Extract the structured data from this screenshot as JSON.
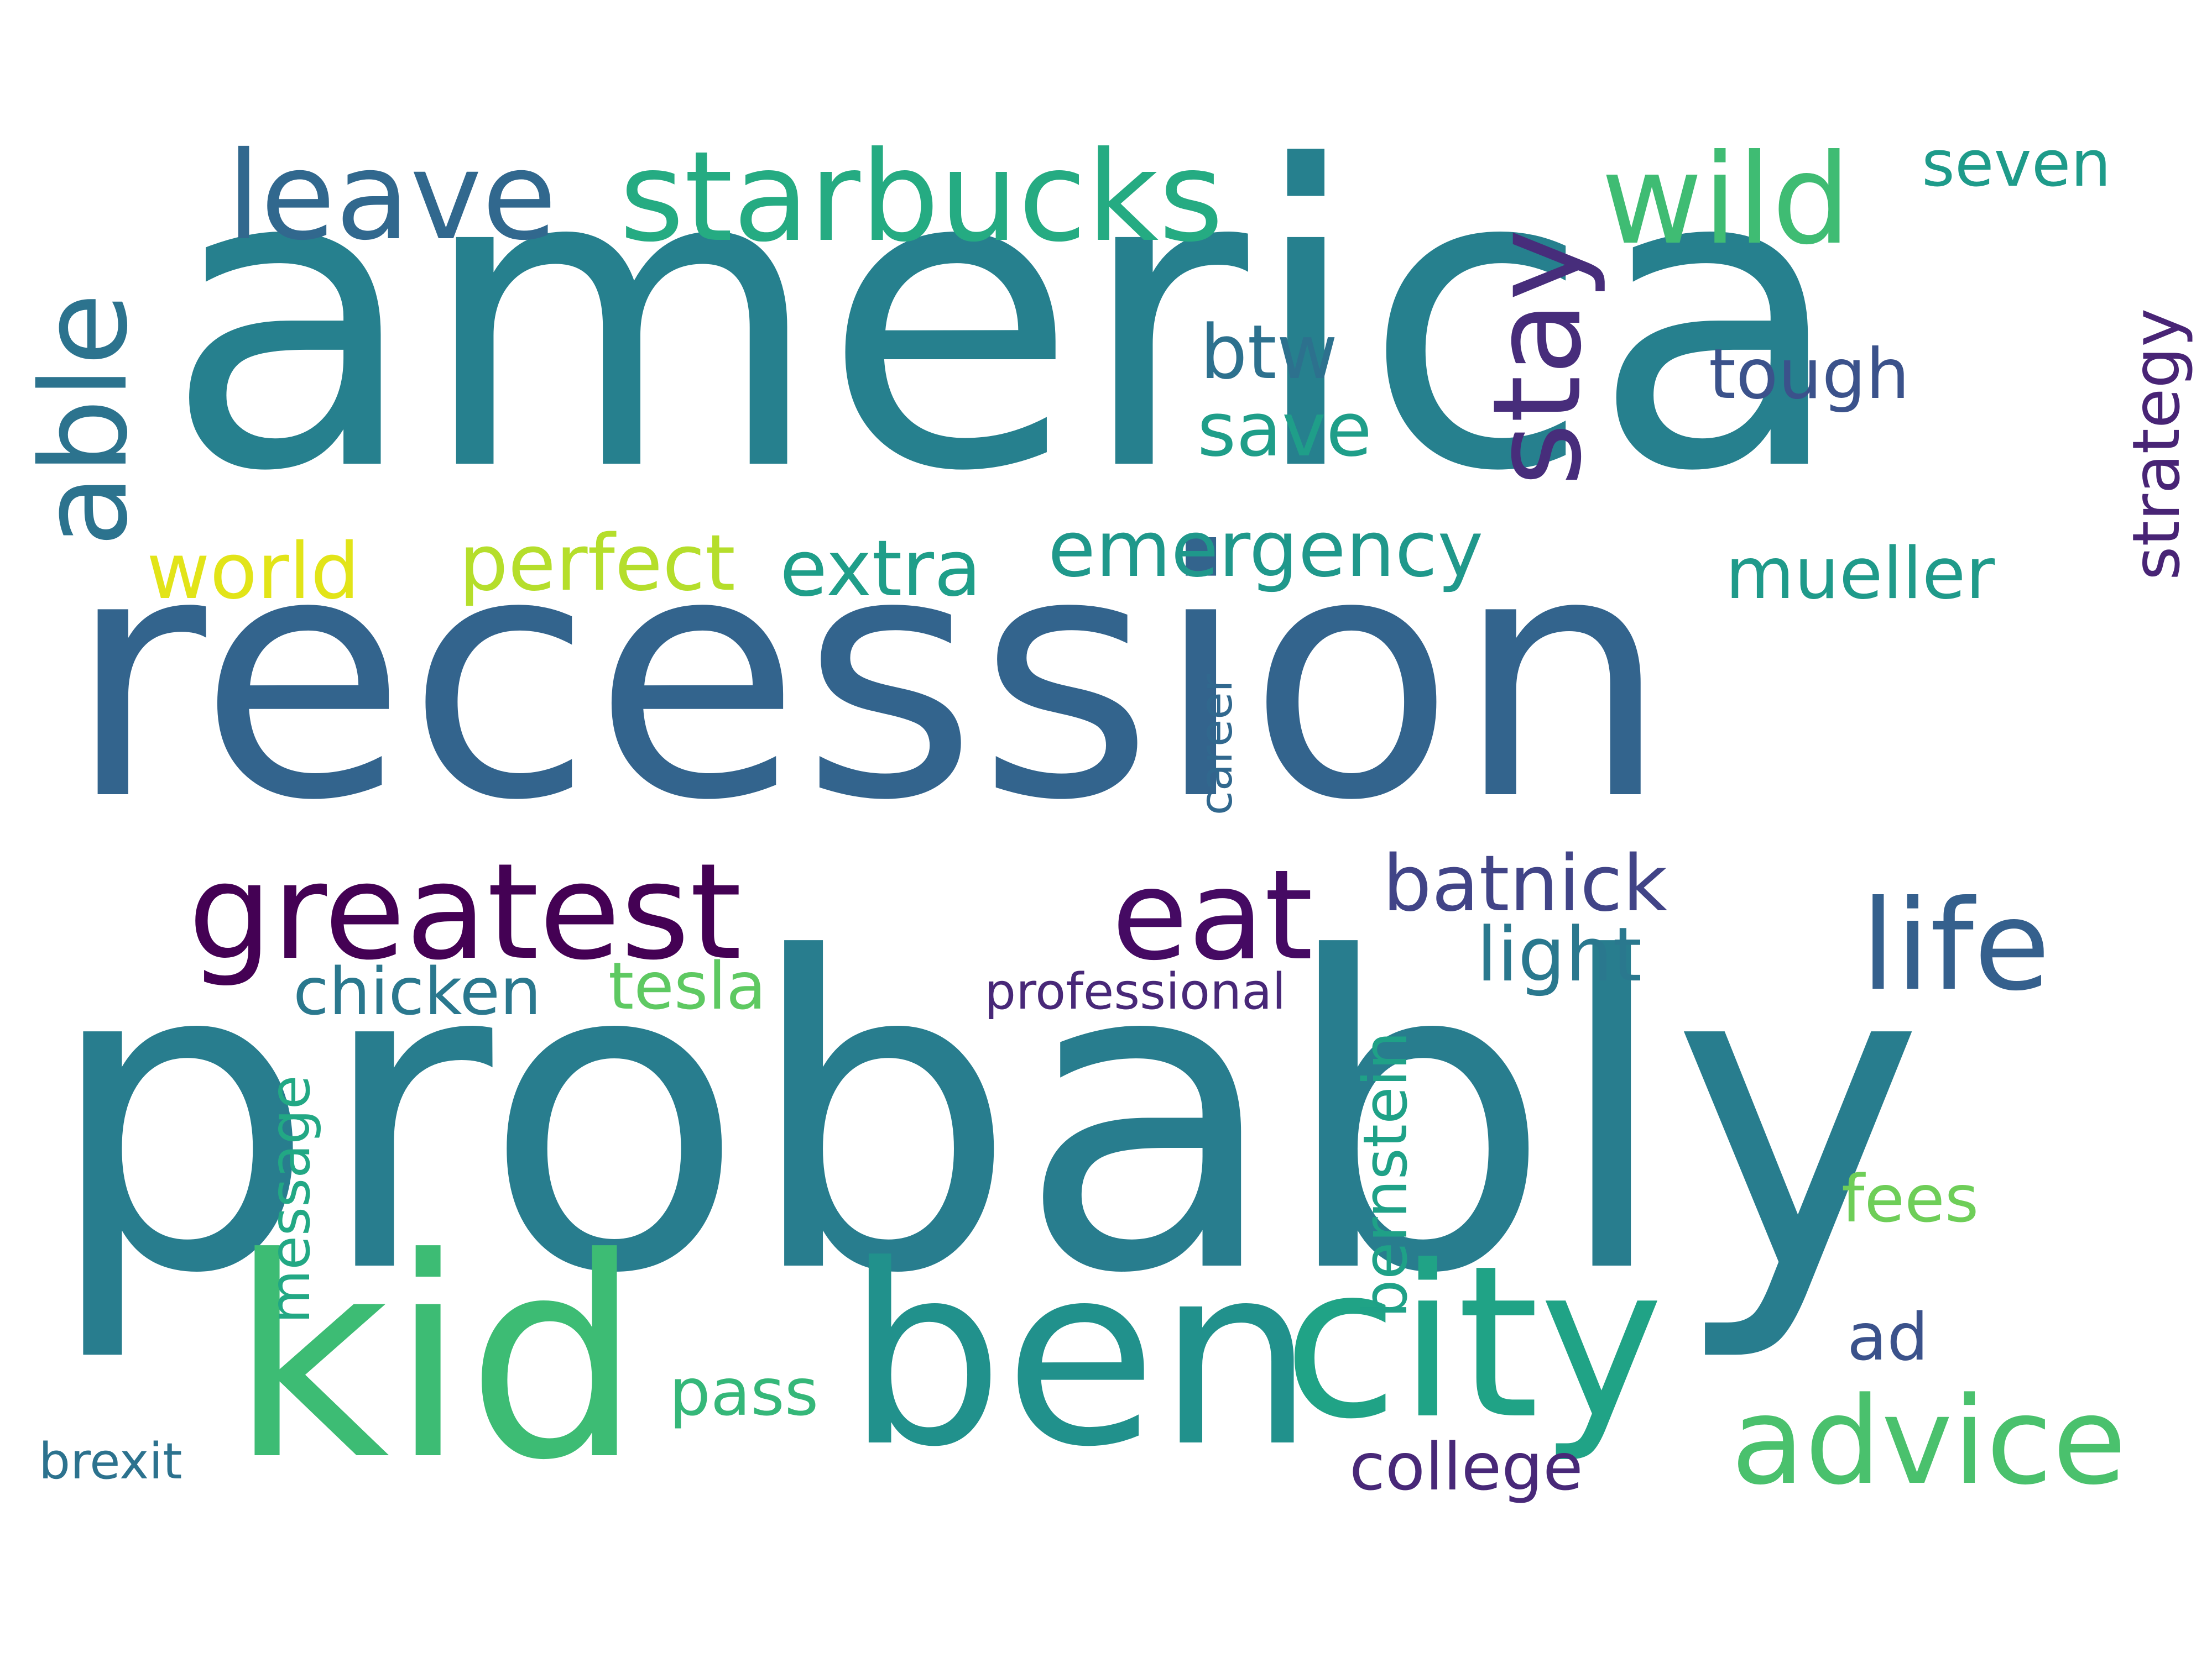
{
  "words": [
    {
      "text": "america",
      "color": "#26808e"
    },
    {
      "text": "recession",
      "color": "#33648d"
    },
    {
      "text": "probably",
      "color": "#287d8e"
    },
    {
      "text": "kid",
      "color": "#3dbc74"
    },
    {
      "text": "ben",
      "color": "#21918c"
    },
    {
      "text": "city",
      "color": "#20a386"
    },
    {
      "text": "advice",
      "color": "#4ac16d"
    },
    {
      "text": "greatest",
      "color": "#440154"
    },
    {
      "text": "eat",
      "color": "#450a63"
    },
    {
      "text": "life",
      "color": "#35608d"
    },
    {
      "text": "leave",
      "color": "#31688e"
    },
    {
      "text": "starbucks",
      "color": "#25ab82"
    },
    {
      "text": "wild",
      "color": "#3fbc73"
    },
    {
      "text": "stay",
      "color": "#472d7b"
    },
    {
      "text": "able",
      "color": "#2c738e"
    },
    {
      "text": "seven",
      "color": "#1e9b8a"
    },
    {
      "text": "strategy",
      "color": "#482475"
    },
    {
      "text": "btw",
      "color": "#2d718e"
    },
    {
      "text": "save",
      "color": "#1f9e89"
    },
    {
      "text": "tough",
      "color": "#3b528b"
    },
    {
      "text": "world",
      "color": "#e2e418"
    },
    {
      "text": "perfect",
      "color": "#b5de2b"
    },
    {
      "text": "extra",
      "color": "#1f9e89"
    },
    {
      "text": "emergency",
      "color": "#1f988b"
    },
    {
      "text": "mueller",
      "color": "#1f9a8a"
    },
    {
      "text": "career",
      "color": "#31688e"
    },
    {
      "text": "batnick",
      "color": "#414487"
    },
    {
      "text": "light",
      "color": "#2a788e"
    },
    {
      "text": "chicken",
      "color": "#2a788e"
    },
    {
      "text": "tesla",
      "color": "#5ec962"
    },
    {
      "text": "professional",
      "color": "#482878"
    },
    {
      "text": "message",
      "color": "#22a884"
    },
    {
      "text": "bernstein",
      "color": "#1fa187"
    },
    {
      "text": "fees",
      "color": "#6ece58"
    },
    {
      "text": "ad",
      "color": "#3b528b"
    },
    {
      "text": "pass",
      "color": "#35b779"
    },
    {
      "text": "college",
      "color": "#482878"
    },
    {
      "text": "brexit",
      "color": "#2c728e"
    }
  ]
}
